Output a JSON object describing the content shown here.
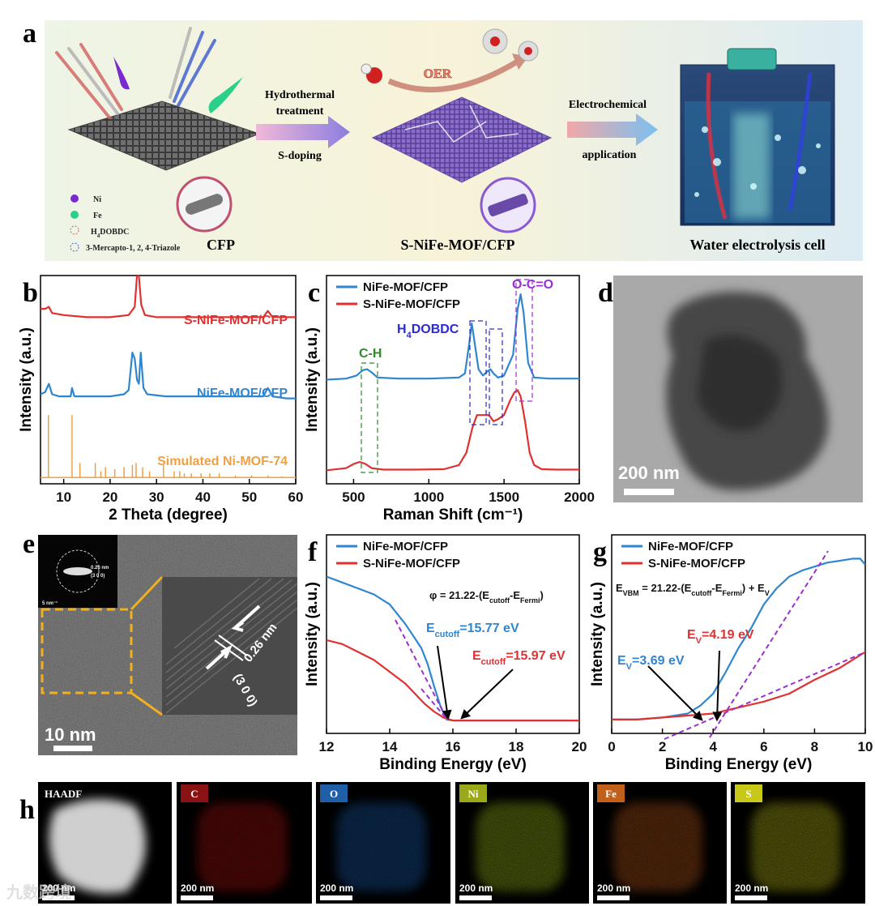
{
  "figure_a": {
    "label": "a",
    "step1_lines": [
      "Hydrothermal",
      "treatment"
    ],
    "step1_below": "S-doping",
    "reaction": "OER",
    "step2_lines": [
      "Electrochemical",
      "application"
    ],
    "legend": [
      {
        "text": "Ni"
      },
      {
        "text": "Fe"
      },
      {
        "parts": [
          "H",
          "4",
          "DOBDC"
        ]
      },
      {
        "text": "3-Mercapto-1, 2, 4-Triazole"
      }
    ],
    "captions": [
      "CFP",
      "S-NiFe-MOF/CFP",
      "Water electrolysis cell"
    ]
  },
  "figure_d": {
    "label": "d",
    "scale": "200 nm"
  },
  "figure_e": {
    "label": "e",
    "scale": "10 nm",
    "spacing": "0.26 nm",
    "plane": "(3 0 0)",
    "inset_spacing": "0.26 nm",
    "inset_plane": "(3 0 0)",
    "inset_scale": "5 nm⁻¹"
  },
  "figure_h": {
    "label": "h",
    "maps": [
      {
        "name": "HAADF",
        "scale": "200 nm"
      },
      {
        "name": "C",
        "scale": "200 nm"
      },
      {
        "name": "O",
        "scale": "200 nm"
      },
      {
        "name": "Ni",
        "scale": "200 nm"
      },
      {
        "name": "Fe",
        "scale": "200 nm"
      },
      {
        "name": "S",
        "scale": "200 nm"
      }
    ]
  },
  "watermark": "九数跨境",
  "chart_data": [
    {
      "type": "line",
      "panel_label": "b",
      "xlabel": "2 Theta (degree)",
      "ylabel": "Intensity (a.u.)",
      "xlim": [
        5,
        60
      ],
      "ylim": [
        0,
        100
      ],
      "xticks": [
        10,
        20,
        30,
        40,
        50,
        60
      ],
      "legend": "inline",
      "series": [
        {
          "name": "S-NiFe-MOF/CFP",
          "color": "#e03131",
          "style": "line",
          "x": [
            5,
            6,
            6.8,
            7.5,
            10,
            15,
            20,
            24,
            25.3,
            25.8,
            26.2,
            26.7,
            27.5,
            30,
            40,
            50,
            53,
            54,
            55,
            58,
            60
          ],
          "values": [
            84,
            84,
            85,
            82,
            81,
            80,
            80,
            81,
            85,
            100,
            100,
            86,
            81,
            80,
            80,
            80,
            80,
            83,
            80,
            80,
            80
          ]
        },
        {
          "name": "NiFe-MOF/CFP",
          "color": "#2f86d0",
          "style": "line",
          "x": [
            5,
            6,
            6.8,
            7.5,
            9,
            11.5,
            11.8,
            12.3,
            15,
            20,
            23,
            24,
            24.8,
            25.3,
            25.8,
            26.2,
            26.6,
            27.2,
            28,
            32,
            40,
            50,
            53,
            54,
            55,
            58,
            60
          ],
          "values": [
            43,
            44,
            48,
            43,
            42,
            42,
            46,
            42,
            42,
            42,
            43,
            45,
            63,
            60,
            50,
            48,
            63,
            46,
            43,
            42,
            42,
            42,
            42,
            46,
            42,
            41,
            41
          ]
        },
        {
          "name": "Simulated Ni-MOF-74",
          "color": "#f0a040",
          "style": "stick",
          "baseline": 3,
          "x": [
            6.7,
            11.8,
            13.5,
            16.8,
            18,
            19,
            21,
            23,
            24.8,
            25.6,
            27,
            28.5,
            31.5,
            33.8,
            35,
            36,
            37.5,
            39.6,
            41.5,
            43.5,
            47,
            50.5,
            54,
            57
          ],
          "values": [
            33,
            33,
            10,
            10,
            6,
            8,
            7,
            8,
            9,
            10,
            8,
            6,
            9,
            6,
            6,
            5,
            5,
            5,
            5,
            5,
            4,
            4,
            4,
            3.5
          ]
        }
      ]
    },
    {
      "type": "line",
      "panel_label": "c",
      "xlabel": "Raman Shift (cm⁻¹)",
      "ylabel": "Intensity (a.u.)",
      "xlim": [
        320,
        2000
      ],
      "ylim": [
        0,
        100
      ],
      "xticks": [
        500,
        1000,
        1500,
        2000
      ],
      "legend": "upper left",
      "annotations": [
        {
          "text": "C-H",
          "color": "#2e8b2e"
        },
        {
          "parts": [
            "H",
            "4",
            "DOBDC"
          ],
          "color": "#2a2ad0"
        },
        {
          "text": "O-C=O",
          "color": "#9b30d0"
        }
      ],
      "series": [
        {
          "name": "NiFe-MOF/CFP",
          "color": "#2f86d0",
          "style": "line",
          "x": [
            320,
            450,
            520,
            560,
            590,
            620,
            660,
            800,
            1000,
            1200,
            1240,
            1270,
            1285,
            1300,
            1330,
            1360,
            1390,
            1410,
            1430,
            1460,
            1500,
            1560,
            1590,
            1610,
            1630,
            1660,
            1700,
            1800,
            2000
          ],
          "values": [
            50,
            50.5,
            52,
            54.5,
            55,
            53.5,
            51,
            50.5,
            50.5,
            51,
            53,
            68,
            77,
            70,
            55,
            52,
            54,
            55,
            53,
            51,
            52,
            62,
            84,
            91,
            82,
            58,
            51,
            50.5,
            50.5
          ]
        },
        {
          "name": "S-NiFe-MOF/CFP",
          "color": "#e03131",
          "style": "line",
          "x": [
            320,
            450,
            500,
            540,
            580,
            620,
            700,
            900,
            1100,
            1200,
            1250,
            1290,
            1320,
            1360,
            1400,
            1430,
            1460,
            1500,
            1540,
            1570,
            1590,
            1610,
            1640,
            1670,
            1700,
            1750,
            1850,
            2000
          ],
          "values": [
            6.5,
            7.5,
            9.5,
            10.5,
            9.5,
            7.5,
            6.8,
            6.8,
            7,
            9,
            15,
            27,
            33,
            33,
            33,
            30,
            31,
            33,
            40,
            44,
            45,
            42,
            30,
            15,
            9,
            7,
            6.8,
            6.8
          ]
        }
      ]
    },
    {
      "type": "line",
      "panel_label": "f",
      "xlabel": "Binding Energy (eV)",
      "ylabel": "Intensity (a.u.)",
      "xlim": [
        12,
        20
      ],
      "ylim": [
        0,
        100
      ],
      "xticks": [
        12,
        14,
        16,
        18,
        20
      ],
      "legend": "upper left",
      "annotations": [
        {
          "parts": [
            "φ = 21.22-(E",
            "cutoff",
            "-E",
            "Fermi",
            ")"
          ],
          "color": "#111111"
        },
        {
          "parts": [
            "E",
            "cutoff",
            "=15.77 eV"
          ],
          "color": "#2f86d0"
        },
        {
          "parts": [
            "E",
            "cutoff",
            "=15.97 eV"
          ],
          "color": "#e03131"
        }
      ],
      "series": [
        {
          "name": "NiFe-MOF/CFP",
          "color": "#2f86d0",
          "style": "line",
          "x": [
            12,
            12.5,
            13,
            13.5,
            14,
            14.5,
            15,
            15.2,
            15.4,
            15.6,
            15.8,
            16,
            17,
            18,
            19,
            20
          ],
          "values": [
            79,
            76,
            73,
            70,
            65,
            55,
            43,
            35,
            24,
            14,
            7,
            6.5,
            6.5,
            6.5,
            6.5,
            6.5
          ]
        },
        {
          "name": "S-NiFe-MOF/CFP",
          "color": "#e03131",
          "style": "line",
          "x": [
            12,
            12.5,
            13,
            13.5,
            14,
            14.5,
            14.8,
            15.1,
            15.4,
            15.7,
            16,
            17,
            18,
            20
          ],
          "values": [
            47,
            45,
            41,
            37,
            31,
            25,
            20,
            15,
            11,
            8,
            6.5,
            6.5,
            6.5,
            6.5
          ]
        }
      ]
    },
    {
      "type": "line",
      "panel_label": "g",
      "xlabel": "Binding Energy (eV)",
      "ylabel": "Intensity (a.u.)",
      "xlim": [
        0,
        10
      ],
      "ylim": [
        0,
        100
      ],
      "xticks": [
        0,
        2,
        4,
        6,
        8,
        10
      ],
      "legend": "upper left",
      "annotations": [
        {
          "parts": [
            "E",
            "VBM",
            " = 21.22-(E",
            "cutoff",
            "-E",
            "Fermi",
            ") + E",
            "V"
          ],
          "color": "#111111"
        },
        {
          "parts": [
            "E",
            "V",
            "=4.19 eV"
          ],
          "color": "#e03131"
        },
        {
          "parts": [
            "E",
            "V",
            "=3.69 eV"
          ],
          "color": "#2f86d0"
        }
      ],
      "series": [
        {
          "name": "NiFe-MOF/CFP",
          "color": "#2f86d0",
          "style": "line",
          "x": [
            0,
            1,
            2,
            3,
            3.5,
            4,
            4.5,
            5,
            5.5,
            6,
            6.5,
            7,
            7.5,
            8,
            8.5,
            9,
            9.5,
            9.8,
            10
          ],
          "values": [
            7,
            7,
            8,
            10,
            14,
            20,
            31,
            43,
            53,
            65,
            73,
            79,
            82,
            84,
            86,
            87,
            88,
            88,
            85
          ]
        },
        {
          "name": "S-NiFe-MOF/CFP",
          "color": "#e03131",
          "style": "line",
          "x": [
            0,
            1,
            2,
            3,
            4,
            5,
            6,
            7,
            8,
            9,
            10
          ],
          "values": [
            7,
            7,
            8,
            9,
            10,
            13,
            16,
            20,
            27,
            33,
            41
          ]
        }
      ]
    }
  ]
}
